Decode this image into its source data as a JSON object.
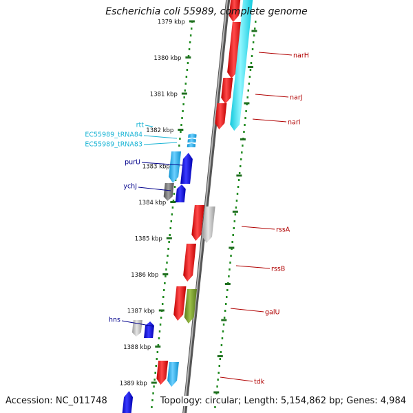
{
  "header": {
    "title": "Escherichia coli 55989, complete genome"
  },
  "footer": {
    "accession": "Accession: NC_011748",
    "summary": "Topology: circular; Length: 5,154,862 bp; Genes: 4,984"
  },
  "colors": {
    "forward_gene": "#e00000",
    "reverse_gene": "#0000e0",
    "rrna_cyan": "#22dde8",
    "trna_light_blue": "#1aa7e0",
    "gray_gene": "#bdbdbd",
    "dark_gray_gene": "#707070",
    "olive_gene": "#6b8e23",
    "dots": "#228b22",
    "backbone": "#7a7a7a",
    "label_red": "#b00000",
    "label_blue": "#00008b",
    "label_cyan": "#17b3d4"
  },
  "ruler": {
    "unit": "kbp",
    "ticks": [
      "1379 kbp",
      "1380 kbp",
      "1381 kbp",
      "1382 kbp",
      "1383 kbp",
      "1384 kbp",
      "1385 kbp",
      "1386 kbp",
      "1387 kbp",
      "1388 kbp",
      "1389 kbp"
    ]
  },
  "gene_labels": [
    {
      "name": "narH",
      "color": "label_red"
    },
    {
      "name": "narJ",
      "color": "label_red"
    },
    {
      "name": "narI",
      "color": "label_red"
    },
    {
      "name": "rtt",
      "color": "label_cyan"
    },
    {
      "name": "EC55989_tRNA84",
      "color": "label_cyan"
    },
    {
      "name": "EC55989_tRNA83",
      "color": "label_cyan"
    },
    {
      "name": "purU",
      "color": "label_blue"
    },
    {
      "name": "ychJ",
      "color": "label_blue"
    },
    {
      "name": "rssA",
      "color": "label_red"
    },
    {
      "name": "rssB",
      "color": "label_red"
    },
    {
      "name": "galU",
      "color": "label_red"
    },
    {
      "name": "hns",
      "color": "label_blue"
    },
    {
      "name": "tdk",
      "color": "label_red"
    }
  ]
}
